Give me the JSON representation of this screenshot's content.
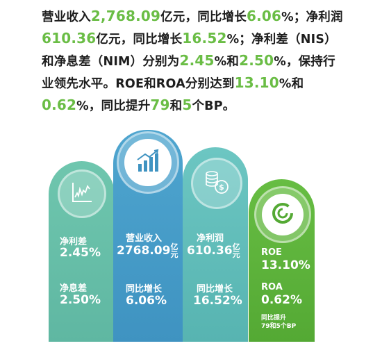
{
  "summary": {
    "p1": "营业收入",
    "v1": "2,768.09",
    "p2": "亿元，同比增长",
    "v2": "6.06",
    "p3": "%；净利润",
    "v3": "610.36",
    "p4": "亿元，同比增长",
    "v4": "16.52",
    "p5": "%；净利差（NIS）和净息差（NIM）分别为",
    "v5": "2.45",
    "p6": "%和",
    "v6": "2.50",
    "p7": "%，保持行业领先水平。ROE和ROA分别达到",
    "v7": "13.10",
    "p8": "%和",
    "v8": "0.62",
    "p9": "%，同比提升",
    "v9": "79",
    "p10": "和",
    "v10": "5",
    "p11": "个BP。"
  },
  "cards": {
    "nis_label": "净利差",
    "nis_value": "2.45%",
    "nim_label": "净息差",
    "nim_value": "2.50%",
    "revenue_label": "营业收入",
    "revenue_value": "2768.09",
    "revenue_unit": "亿元",
    "revenue_growth_label": "同比增长",
    "revenue_growth_value": "6.06%",
    "profit_label": "净利润",
    "profit_value": "610.36",
    "profit_unit": "亿元",
    "profit_growth_label": "同比增长",
    "profit_growth_value": "16.52%",
    "roe_label": "ROE",
    "roe_value": "13.10%",
    "roa_label": "ROA",
    "roa_value": "0.62%",
    "improve_line1": "同比提升",
    "improve_line2": "79和5个BP"
  },
  "colors": {
    "highlight": "#6abd45",
    "teal": "#5fb7a2",
    "blue": "#3f93c1",
    "aqua": "#57b4b1",
    "green": "#54a934"
  },
  "icons": [
    "line-chart-icon",
    "bar-chart-icon",
    "coin-stack-icon",
    "ring-icon"
  ]
}
